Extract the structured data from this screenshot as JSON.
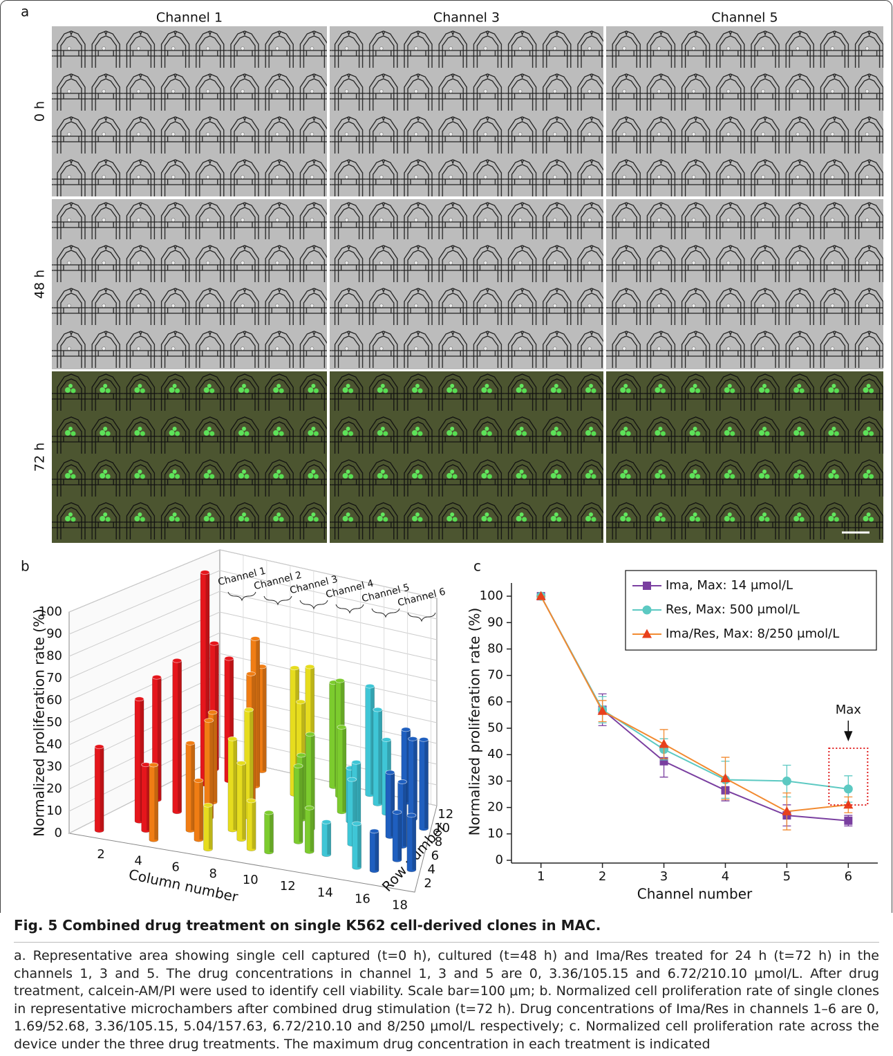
{
  "panel_labels": [
    "a",
    "b",
    "c"
  ],
  "panel_a": {
    "columns": [
      "Channel 1",
      "Channel 3",
      "Channel 5"
    ],
    "rows": [
      "0 h",
      "48 h",
      "72 h"
    ]
  },
  "chart_data": [
    {
      "type": "bar3d",
      "y_label": "Normalized proliferation rate (%)",
      "x_label": "Column number",
      "z_label": "Row number",
      "ylim": [
        0,
        100
      ],
      "yticks": [
        0,
        10,
        20,
        30,
        40,
        50,
        60,
        70,
        80,
        90,
        100
      ],
      "xlim": [
        0,
        18.5
      ],
      "xticks": [
        2,
        4,
        6,
        8,
        10,
        12,
        14,
        16,
        18
      ],
      "zlim": [
        0,
        12.5
      ],
      "zticks": [
        2,
        4,
        6,
        8,
        10,
        12
      ],
      "grid": true,
      "series": [
        {
          "name": "Channel 1",
          "color": "#e5161c",
          "columns": [
            1,
            1,
            2,
            2,
            3,
            3,
            1,
            3
          ],
          "rows": [
            1,
            6,
            3,
            9,
            2,
            10,
            11,
            5
          ],
          "values": [
            38,
            57,
            56,
            100,
            30,
            58,
            60,
            70
          ]
        },
        {
          "name": "Channel 2",
          "color": "#f07d14",
          "columns": [
            4,
            4,
            5,
            5,
            6,
            6,
            4,
            5
          ],
          "rows": [
            1,
            7,
            3,
            10,
            2,
            8,
            12,
            5
          ],
          "values": [
            34,
            42,
            40,
            70,
            27,
            60,
            50,
            45
          ]
        },
        {
          "name": "Channel 3",
          "color": "#e6dc1e",
          "columns": [
            7,
            7,
            8,
            8,
            9,
            9,
            8,
            7
          ],
          "rows": [
            1,
            6,
            3,
            10,
            2,
            9,
            12,
            4
          ],
          "values": [
            20,
            50,
            35,
            60,
            22,
            48,
            55,
            42
          ]
        },
        {
          "name": "Channel 4",
          "color": "#7ccb2e",
          "columns": [
            10,
            10,
            11,
            11,
            12,
            12,
            10,
            11
          ],
          "rows": [
            2,
            7,
            4,
            11,
            3,
            9,
            12,
            6
          ],
          "values": [
            18,
            30,
            35,
            55,
            20,
            40,
            50,
            44
          ]
        },
        {
          "name": "Channel 5",
          "color": "#3fc6d6",
          "columns": [
            13,
            13,
            14,
            14,
            15,
            15,
            13,
            14
          ],
          "rows": [
            3,
            8,
            5,
            11,
            2,
            10,
            12,
            6
          ],
          "values": [
            15,
            25,
            30,
            45,
            20,
            35,
            52,
            35
          ]
        },
        {
          "name": "Channel 6",
          "color": "#1f5fbf",
          "columns": [
            16,
            16,
            17,
            17,
            18,
            18,
            16,
            17
          ],
          "rows": [
            2,
            7,
            4,
            10,
            3,
            9,
            12,
            6
          ],
          "values": [
            18,
            30,
            22,
            38,
            25,
            42,
            35,
            30
          ]
        }
      ]
    },
    {
      "type": "line",
      "y_label": "Normalized proliferation rate (%)",
      "x_label": "Channel number",
      "x": [
        1,
        2,
        3,
        4,
        5,
        6
      ],
      "xlim": [
        0.52,
        6.48
      ],
      "xticks": [
        1,
        2,
        3,
        4,
        5,
        6
      ],
      "ylim": [
        0,
        105
      ],
      "yticks": [
        0,
        10,
        20,
        30,
        40,
        50,
        60,
        70,
        80,
        90,
        100
      ],
      "legend": "top-right",
      "annotation": "Max",
      "series": [
        {
          "name": "Ima, Max: 14 μmol/L",
          "color": "#7a3fa0",
          "marker": "square",
          "values": [
            100,
            57,
            37.5,
            26.5,
            17,
            15
          ],
          "errors": [
            0,
            6,
            6,
            4,
            4,
            2
          ]
        },
        {
          "name": "Res, Max: 500 μmol/L",
          "color": "#5cc9c2",
          "marker": "circle",
          "values": [
            100,
            57,
            42,
            30.5,
            30,
            27
          ],
          "errors": [
            0,
            5,
            4,
            7,
            6,
            5
          ]
        },
        {
          "name": "Ima/Res, Max: 8/250 μmol/L",
          "color": "#f28a30",
          "marker": "triangle",
          "values": [
            100,
            56.5,
            44,
            31,
            18.5,
            21
          ],
          "errors": [
            0,
            4,
            5.5,
            8,
            7,
            3
          ]
        }
      ]
    }
  ],
  "caption": {
    "title": "Fig. 5   Combined drug treatment on single K562 cell-derived clones in MAC.",
    "text": "a. Representative area showing single cell captured (t=0 h), cultured (t=48 h) and Ima/Res treated for 24 h (t=72 h) in the channels 1, 3 and 5. The drug concentrations in channel 1, 3 and 5 are 0, 3.36/105.15 and 6.72/210.10 μmol/L. After drug treatment, calcein-AM/PI were used to identify cell viability. Scale bar=100 μm; b. Normalized cell proliferation rate of single clones in representative microchambers after combined drug stimulation (t=72 h). Drug concentrations of Ima/Res in channels 1–6 are 0, 1.69/52.68, 3.36/105.15, 5.04/157.63, 6.72/210.10 and 8/250 μmol/L respectively; c. Normalized cell proliferation rate across the device under the three drug treatments. The maximum drug concentration in each treatment is indicated"
  }
}
